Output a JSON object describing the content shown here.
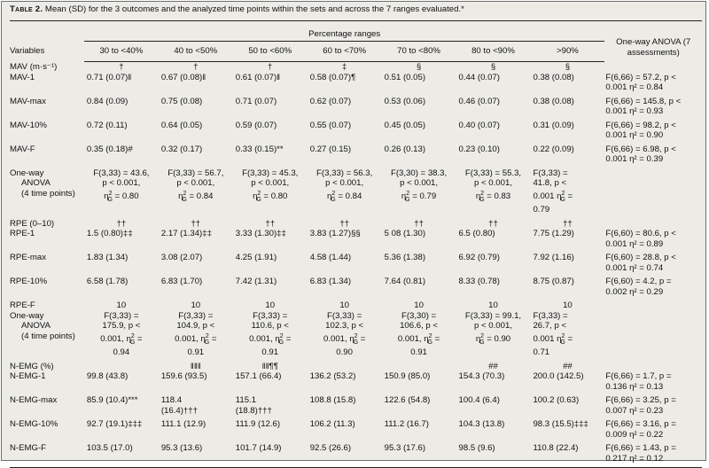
{
  "caption": {
    "table_no": "Table 2.",
    "text": " Mean (SD) for the 3 outcomes and the analyzed time points within the sets and across the 7 ranges evaluated.*"
  },
  "header": {
    "variables": "Variables",
    "percentage_ranges": "Percentage ranges",
    "anova_line1": "One-way ANOVA (7",
    "anova_line2": "assessments)",
    "ranges": [
      "30 to <40%",
      "40 to <50%",
      "50 to <60%",
      "60 to <70%",
      "70 to <80%",
      "80 to <90%",
      ">90%"
    ]
  },
  "mav": {
    "title": "MAV (m·s⁻¹)",
    "marks": [
      "†",
      "†",
      "†",
      "‡",
      "§",
      "§",
      "§"
    ],
    "rows": [
      {
        "label": "MAV-1",
        "cells": [
          "0.71 (0.07)‖",
          "0.67 (0.08)‖",
          "0.61 (0.07)‖",
          "0.58 (0.07)¶",
          "0.51 (0.05)",
          "0.44 (0.07)",
          "0.38 (0.08)"
        ],
        "anova": [
          "F(6,66) = 57.2, p <",
          "0.001 η² = 0.84"
        ]
      },
      {
        "label": "MAV-max",
        "cells": [
          "0.84 (0.09)",
          "0.75 (0.08)",
          "0.71 (0.07)",
          "0.62 (0.07)",
          "0.53 (0.06)",
          "0.46 (0.07)",
          "0.38 (0.08)"
        ],
        "anova": [
          "F(6,66) = 145.8, p <",
          "0.001 η² = 0.93"
        ]
      },
      {
        "label": "MAV-10%",
        "cells": [
          "0.72 (0.11)",
          "0.64 (0.05)",
          "0.59 (0.07)",
          "0.55 (0.07)",
          "0.45 (0.05)",
          "0.40 (0.07)",
          "0.31 (0.09)"
        ],
        "anova": [
          "F(6,66) = 98.2, p <",
          "0.001 η² = 0.90"
        ]
      },
      {
        "label": "MAV-F",
        "cells": [
          "0.35 (0.18)#",
          "0.32 (0.17)",
          "0.33 (0.15)**",
          "0.27 (0.15)",
          "0.26 (0.13)",
          "0.23 (0.10)",
          "0.22 (0.09)"
        ],
        "anova": [
          "F(6,66) = 6.98, p <",
          "0.001 η² = 0.39"
        ]
      }
    ],
    "owa": {
      "label": [
        "One-way",
        "ANOVA",
        "(4 time points)"
      ],
      "cells": [
        [
          "F(3,33) = 43.6,",
          "p < 0.001,",
          "η²G = 0.80"
        ],
        [
          "F(3,33) = 56.7,",
          "p < 0.001,",
          "η²G = 0.84"
        ],
        [
          "F(3,33) = 45.3,",
          "p < 0.001,",
          "η²G = 0.80"
        ],
        [
          "F(3,33) = 56.3,",
          "p < 0.001,",
          "η²G = 0.84"
        ],
        [
          "F(3,30) = 38.3,",
          "p < 0.001,",
          "η²G = 0.79"
        ],
        [
          "F(3,33) = 55.3,",
          "p < 0.001,",
          "η²G = 0.83"
        ],
        [
          "F(3,33) =",
          "41.8, p <",
          "0.001 η²G =",
          "0.79"
        ]
      ]
    }
  },
  "rpe": {
    "title": "RPE (0–10)",
    "marks": [
      "††",
      "††",
      "††",
      "††",
      "††",
      "††",
      "††"
    ],
    "rows": [
      {
        "label": "RPE-1",
        "cells": [
          "1.5 (0.80)‡‡",
          "2.17 (1.34)‡‡",
          "3.33 (1.30)‡‡",
          "3.83 (1.27)§§",
          "5 08 (1.30)",
          "6.5 (0.80)",
          "7.75 (1.29)"
        ],
        "anova": [
          "F(6,60) = 80.6, p <",
          "0.001 η² = 0.89"
        ]
      },
      {
        "label": "RPE-max",
        "cells": [
          "1.83 (1.34)",
          "3.08 (2.07)",
          "4.25 (1.91)",
          "4.58 (1.44)",
          "5.36 (1.38)",
          "6.92 (0.79)",
          "7.92 (1.16)"
        ],
        "anova": [
          "F(6,60) = 28.8, p <",
          "0.001 η² = 0.74"
        ]
      },
      {
        "label": "RPE-10%",
        "cells": [
          "6.58 (1.78)",
          "6.83 (1.70)",
          "7.42 (1.31)",
          "6.83 (1.34)",
          "7.64 (0.81)",
          "8.33 (0.78)",
          "8.75 (0.87)"
        ],
        "anova": [
          "F(6,60) = 4.2, p =",
          "0.002 η² = 0.29"
        ]
      }
    ],
    "rpef": {
      "label": "RPE-F",
      "cells": [
        "10",
        "10",
        "10",
        "10",
        "10",
        "10",
        "10"
      ]
    },
    "owa": {
      "label": [
        "One-way",
        "ANOVA",
        "(4 time points)"
      ],
      "cells": [
        [
          "F(3,33) =",
          "175.9, p <",
          "0.001, η²G =",
          "0.94"
        ],
        [
          "F(3,33) =",
          "104.9, p <",
          "0.001, η²G =",
          "0.91"
        ],
        [
          "F(3,33) =",
          "110.6, p <",
          "0.001, η²G =",
          "0.91"
        ],
        [
          "F(3,33) =",
          "102.3, p <",
          "0.001, η²G =",
          "0.90"
        ],
        [
          "F(3,30) =",
          "106.6, p <",
          "0.001, η²G =",
          "0.91"
        ],
        [
          "F(3,33) = 99.1,",
          "p < 0.001,",
          "η²G = 0.90"
        ],
        [
          "F(3,33) =",
          "26.7, p <",
          "0.001 η²G =",
          "0.71"
        ]
      ]
    }
  },
  "nemg": {
    "title": "N-EMG (%)",
    "marks": [
      "",
      "‖‖‖",
      "‖‖¶¶",
      "",
      "",
      "##",
      "##"
    ],
    "rows": [
      {
        "label": "N-EMG-1",
        "cells": [
          [
            "99.8 (43.8)"
          ],
          [
            "159.6 (93.5)"
          ],
          [
            "157.1 (66.4)"
          ],
          [
            "136.2 (53.2)"
          ],
          [
            "150.9 (85.0)"
          ],
          [
            "154.3 (70.3)"
          ],
          [
            "200.0 (142.5)"
          ]
        ],
        "anova": [
          "F(6,66) = 1.7, p =",
          "0.136 η² = 0.13"
        ]
      },
      {
        "label": "N-EMG-max",
        "cells": [
          [
            "85.9 (10.4)***"
          ],
          [
            "118.4",
            "(16.4)†††"
          ],
          [
            "115.1",
            "(18.8)†††"
          ],
          [
            "108.8 (15.8)"
          ],
          [
            "122.6 (54.8)"
          ],
          [
            "100.4 (6.4)"
          ],
          [
            "100.2 (0.63)"
          ]
        ],
        "anova": [
          "F(6,66) = 3.25, p =",
          "0.007 η² = 0.23"
        ]
      },
      {
        "label": "N-EMG-10%",
        "cells": [
          [
            "92.7 (19.1)‡‡‡"
          ],
          [
            "111.1 (12.9)"
          ],
          [
            "111.9 (12.6)"
          ],
          [
            "106.2 (11.3)"
          ],
          [
            "111.2 (16.7)"
          ],
          [
            "104.3 (13.8)"
          ],
          [
            "98.3 (15.5)‡‡‡"
          ]
        ],
        "anova": [
          "F(6,66) = 3.16, p =",
          "0.009 η² = 0.22"
        ]
      },
      {
        "label": "N-EMG-F",
        "cells": [
          [
            "103.5 (17.0)"
          ],
          [
            "95.3 (13.6)"
          ],
          [
            "101.7 (14.9)"
          ],
          [
            "92.5 (26.6)"
          ],
          [
            "95.3 (17.6)"
          ],
          [
            "98.5 (9.6)"
          ],
          [
            "110.8 (22.4)"
          ]
        ],
        "anova": [
          "F(6,66) = 1.43, p =",
          "0.217 η² = 0.12"
        ]
      }
    ]
  }
}
